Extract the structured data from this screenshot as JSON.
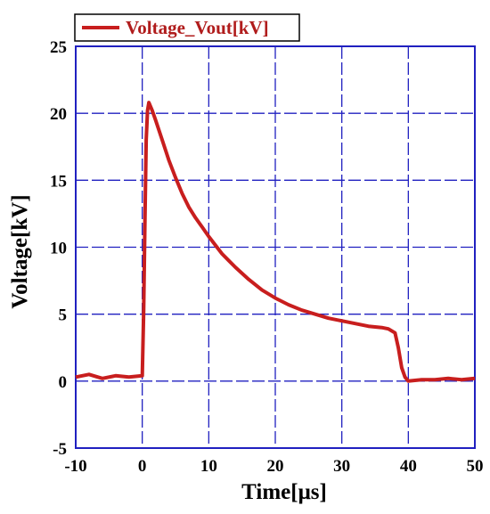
{
  "chart_data": {
    "type": "line",
    "xlabel": "Time[μs]",
    "ylabel": "Voltage[kV]",
    "xlim": [
      -10,
      50
    ],
    "ylim": [
      -5,
      25
    ],
    "xticks": [
      "-10",
      "0",
      "10",
      "20",
      "30",
      "40",
      "50"
    ],
    "yticks": [
      "-5",
      "0",
      "5",
      "10",
      "15",
      "20",
      "25"
    ],
    "grid": true,
    "legend": "top-left",
    "series": [
      {
        "name": "Voltage_Vout[kV]",
        "color": "#c81e1e",
        "x": [
          -10,
          -8,
          -6,
          -4,
          -2,
          0,
          0.2,
          0.4,
          0.6,
          0.8,
          1,
          1.5,
          2,
          3,
          4,
          5,
          6,
          7,
          8,
          9,
          10,
          12,
          14,
          16,
          18,
          20,
          22,
          24,
          26,
          28,
          30,
          32,
          34,
          36,
          37,
          38,
          38.5,
          39,
          39.5,
          40,
          42,
          44,
          46,
          48,
          50
        ],
        "y": [
          0.3,
          0.5,
          0.2,
          0.4,
          0.3,
          0.4,
          5,
          12,
          18,
          20.2,
          20.8,
          20.2,
          19.5,
          18,
          16.5,
          15.2,
          14,
          13,
          12.2,
          11.5,
          10.8,
          9.5,
          8.5,
          7.6,
          6.8,
          6.2,
          5.7,
          5.3,
          5.0,
          4.7,
          4.5,
          4.3,
          4.1,
          4.0,
          3.9,
          3.6,
          2.5,
          1.0,
          0.3,
          0.0,
          0.1,
          0.1,
          0.2,
          0.1,
          0.2
        ]
      }
    ]
  }
}
